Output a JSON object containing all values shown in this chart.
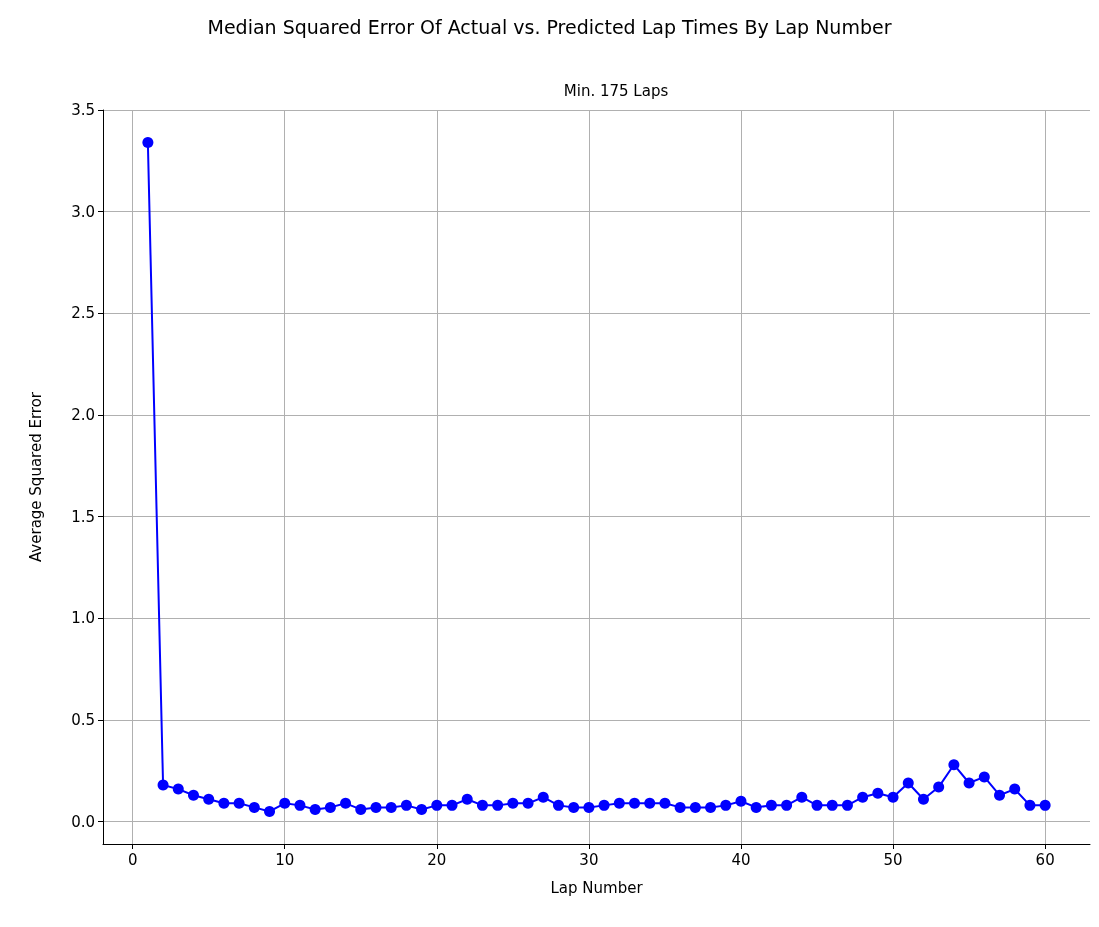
{
  "chart_data": {
    "type": "line",
    "title": "Median Squared Error Of Actual vs. Predicted Lap Times By Lap Number",
    "subtitle": "Min. 175 Laps",
    "xlabel": "Lap Number",
    "ylabel": "Average Squared Error",
    "x": [
      1,
      2,
      3,
      4,
      5,
      6,
      7,
      8,
      9,
      10,
      11,
      12,
      13,
      14,
      15,
      16,
      17,
      18,
      19,
      20,
      21,
      22,
      23,
      24,
      25,
      26,
      27,
      28,
      29,
      30,
      31,
      32,
      33,
      34,
      35,
      36,
      37,
      38,
      39,
      40,
      41,
      42,
      43,
      44,
      45,
      46,
      47,
      48,
      49,
      50,
      51,
      52,
      53,
      54,
      55,
      56,
      57,
      58,
      59,
      60
    ],
    "series": [
      {
        "color": "#0000ff",
        "values": [
          3.34,
          0.18,
          0.16,
          0.13,
          0.11,
          0.09,
          0.09,
          0.07,
          0.05,
          0.09,
          0.08,
          0.06,
          0.07,
          0.09,
          0.06,
          0.07,
          0.07,
          0.08,
          0.06,
          0.08,
          0.08,
          0.11,
          0.08,
          0.08,
          0.09,
          0.09,
          0.12,
          0.08,
          0.07,
          0.07,
          0.08,
          0.09,
          0.09,
          0.09,
          0.09,
          0.07,
          0.07,
          0.07,
          0.08,
          0.1,
          0.07,
          0.08,
          0.08,
          0.12,
          0.08,
          0.08,
          0.08,
          0.12,
          0.14,
          0.12,
          0.19,
          0.11,
          0.17,
          0.28,
          0.19,
          0.22,
          0.13,
          0.16,
          0.08,
          0.08
        ]
      }
    ],
    "xlim": [
      -1.95,
      62.95
    ],
    "xticks": [
      0,
      10,
      20,
      30,
      40,
      50,
      60
    ],
    "ylim": [
      -0.11,
      3.5
    ],
    "yticks": [
      {
        "value": 0,
        "label": "0.0"
      },
      {
        "value": 0.5,
        "label": "0.5"
      },
      {
        "value": 1,
        "label": "1.0"
      },
      {
        "value": 1.5,
        "label": "1.5"
      },
      {
        "value": 2,
        "label": "2.0"
      },
      {
        "value": 2.5,
        "label": "2.5"
      },
      {
        "value": 3,
        "label": "3.0"
      },
      {
        "value": 3.5,
        "label": "3.5"
      }
    ],
    "grid": true,
    "marker": "circle",
    "line_style": "solid"
  }
}
